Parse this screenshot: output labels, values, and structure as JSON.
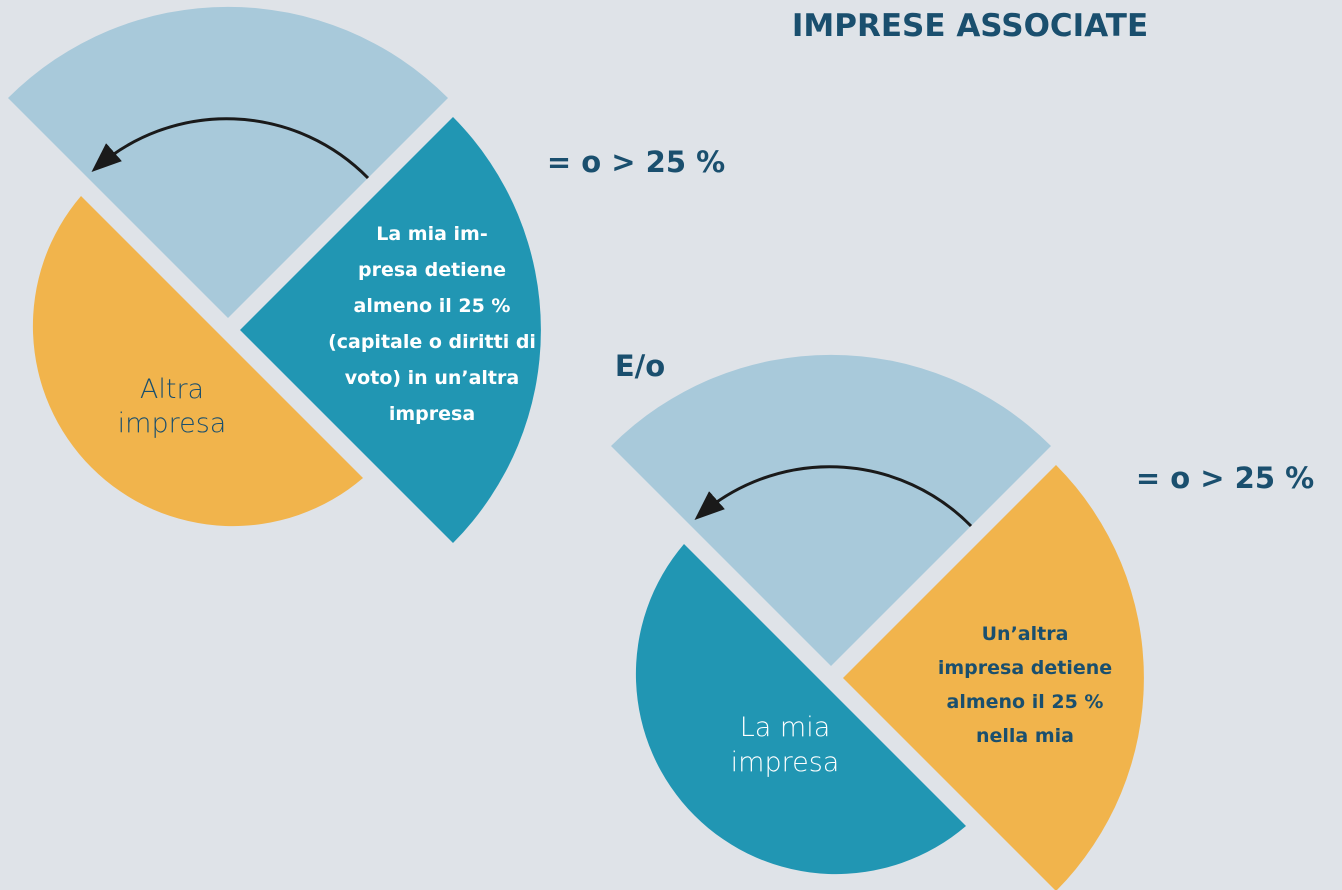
{
  "header": {
    "title": "IMPRESE ASSOCIATE"
  },
  "connector": "E/o",
  "diagrams": [
    {
      "outer_label": [
        "Altra",
        "impresa"
      ],
      "inner_label": [
        "La mia im-",
        "presa detiene",
        "almeno il 25 %",
        "(capitale o diritti di",
        "voto) in un’altra",
        "impresa"
      ],
      "threshold": "= o > 25 %"
    },
    {
      "outer_label": [
        "La mia",
        "impresa"
      ],
      "inner_label": [
        "Un’altra",
        "impresa detiene",
        "almeno il 25 %",
        "nella mia"
      ],
      "threshold": "= o > 25 %"
    }
  ]
}
